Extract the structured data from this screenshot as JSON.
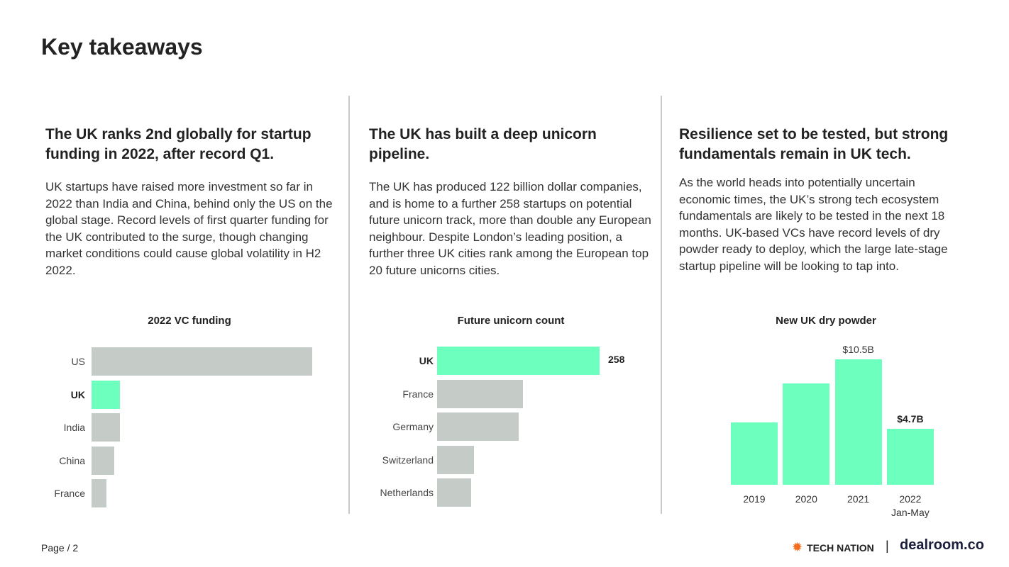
{
  "title": "Key takeaways",
  "columns": [
    {
      "heading": "The UK ranks 2nd globally for startup funding in 2022, after record Q1.",
      "body": "UK startups have raised more investment so far in 2022 than India and China, behind only the US on the global stage. Record levels of first quarter funding for the UK contributed to the surge, though changing market conditions could cause global volatility in H2 2022."
    },
    {
      "heading": "The UK has built a deep unicorn pipeline.",
      "body": "The UK has produced 122 billion dollar companies, and is home to a further 258 startups on potential future unicorn track, more than double any European neighbour. Despite London’s leading position, a further three UK cities rank among the European top 20 future unicorns cities."
    },
    {
      "heading": "Resilience set to be tested, but strong fundamentals remain in UK tech.",
      "body": "As the world heads into potentially uncertain economic times, the UK’s strong tech ecosystem fundamentals are likely to be tested in the next 18 months. UK-based VCs have record levels of dry powder ready to deploy, which the large late-stage startup pipeline will be looking to tap into."
    }
  ],
  "chart_data": [
    {
      "type": "bar",
      "orientation": "horizontal",
      "title": "2022 VC funding",
      "categories": [
        "US",
        "UK",
        "India",
        "China",
        "France"
      ],
      "values": [
        140,
        18,
        18,
        14.5,
        9.5
      ],
      "highlight": "UK",
      "colors": {
        "default": "#c5ccc8",
        "highlight": "#6dffbe"
      }
    },
    {
      "type": "bar",
      "orientation": "horizontal",
      "title": "Future unicorn count",
      "categories": [
        "UK",
        "France",
        "Germany",
        "Switzerland",
        "Netherlands"
      ],
      "values": [
        258,
        136,
        130,
        59,
        54
      ],
      "data_labels": {
        "UK": "258"
      },
      "highlight": "UK",
      "colors": {
        "default": "#c5ccc8",
        "highlight": "#6dffbe"
      }
    },
    {
      "type": "bar",
      "orientation": "vertical",
      "title": "New UK dry powder",
      "categories": [
        "2019",
        "2020",
        "2021",
        "2022\nJan-May"
      ],
      "category_lines": [
        [
          "2019"
        ],
        [
          "2020"
        ],
        [
          "2021"
        ],
        [
          "2022",
          "Jan-May"
        ]
      ],
      "values": [
        5.2,
        8.5,
        10.5,
        4.7
      ],
      "unit": "$B",
      "data_labels": {
        "2021": "$10.5B",
        "2022": "$4.7B"
      },
      "colors": {
        "default": "#6dffbe"
      }
    }
  ],
  "footer": {
    "page_label": "Page / 2",
    "brand1": "TECH NATION",
    "separator": "|",
    "brand2": "dealroom.co",
    "brand1_color": "#f26b1d",
    "brand2_color": "#1b1f3b"
  }
}
